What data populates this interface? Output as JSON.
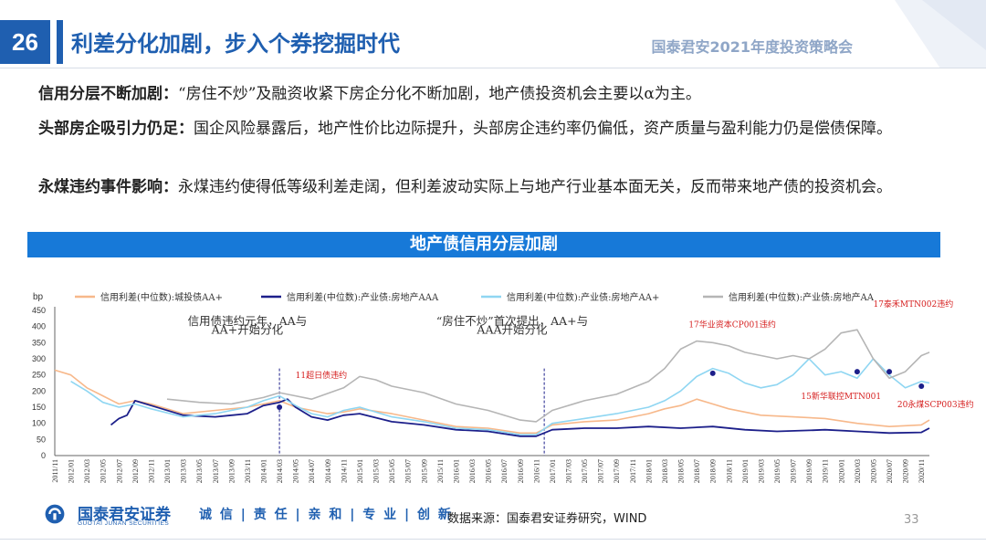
{
  "header": {
    "page_number": "26",
    "title": "利差分化加剧，步入个券挖掘时代",
    "conference": "国泰君安2021年度投资策略会"
  },
  "paragraphs": [
    {
      "label": "信用分层不断加剧：",
      "text": "“房住不炒”及融资收紧下房企分化不断加剧，地产债投资机会主要以α为主。"
    },
    {
      "label": "头部房企吸引力仍足：",
      "text": "国企风险暴露后，地产性价比边际提升，头部房企违约率仍偏低，资产质量与盈利能力仍是偿债保障。"
    },
    {
      "label": "永煤违约事件影响：",
      "text": "永煤违约使得低等级利差走阔，但利差波动实际上与地产行业基本面无关，反而带来地产债的投资机会。"
    }
  ],
  "banner": "地产债信用分层加剧",
  "footer": {
    "company": "国泰君安证券",
    "company_en": "GUOTAI JUNAN SECURITIES",
    "motto": "诚 信 | 责 任 | 亲 和 | 专 业 | 创 新",
    "source": "数据来源：国泰君安证券研究，WIND",
    "page": "33"
  },
  "colors": {
    "brand": "#1f5fb0",
    "banner": "#1779d8"
  },
  "chart_data": {
    "type": "line",
    "ylabel": "bp",
    "ylim": [
      0,
      450
    ],
    "yticks": [
      0,
      50,
      100,
      150,
      200,
      250,
      300,
      350,
      400,
      450
    ],
    "x_start": "2011/11",
    "x_end": "2020/12",
    "xtick_labels": [
      "2011/11",
      "2012/01",
      "2012/03",
      "2012/05",
      "2012/07",
      "2012/09",
      "2012/11",
      "2013/01",
      "2013/03",
      "2013/05",
      "2013/07",
      "2013/09",
      "2013/11",
      "2014/01",
      "2014/03",
      "2014/05",
      "2014/07",
      "2014/09",
      "2014/11",
      "2015/01",
      "2015/03",
      "2015/05",
      "2015/07",
      "2015/09",
      "2015/11",
      "2016/01",
      "2016/03",
      "2016/05",
      "2016/07",
      "2016/09",
      "2016/11",
      "2017/01",
      "2017/03",
      "2017/05",
      "2017/07",
      "2017/09",
      "2017/11",
      "2018/01",
      "2018/03",
      "2018/05",
      "2018/07",
      "2018/09",
      "2018/11",
      "2019/01",
      "2019/03",
      "2019/05",
      "2019/07",
      "2019/09",
      "2019/11",
      "2020/01",
      "2020/03",
      "2020/05",
      "2020/07",
      "2020/09",
      "2020/11"
    ],
    "legend": [
      "信用利差(中位数):城投债AA+",
      "信用利差(中位数):产业债:房地产AAA",
      "信用利差(中位数):产业债:房地产AA+",
      "信用利差(中位数):产业债:房地产AA"
    ],
    "series": [
      {
        "name": "信用利差(中位数):城投债AA+",
        "color": "#f7b88a",
        "width": 1.6,
        "points": [
          [
            "2011/11",
            265
          ],
          [
            "2012/01",
            250
          ],
          [
            "2012/03",
            210
          ],
          [
            "2012/05",
            185
          ],
          [
            "2012/07",
            160
          ],
          [
            "2012/09",
            170
          ],
          [
            "2012/11",
            160
          ],
          [
            "2013/03",
            130
          ],
          [
            "2013/07",
            140
          ],
          [
            "2013/11",
            150
          ],
          [
            "2014/01",
            160
          ],
          [
            "2014/03",
            170
          ],
          [
            "2014/05",
            150
          ],
          [
            "2014/07",
            140
          ],
          [
            "2014/09",
            130
          ],
          [
            "2014/11",
            135
          ],
          [
            "2015/01",
            145
          ],
          [
            "2015/05",
            130
          ],
          [
            "2015/09",
            110
          ],
          [
            "2016/01",
            90
          ],
          [
            "2016/05",
            85
          ],
          [
            "2016/09",
            70
          ],
          [
            "2016/11",
            70
          ],
          [
            "2017/01",
            95
          ],
          [
            "2017/05",
            105
          ],
          [
            "2017/09",
            110
          ],
          [
            "2018/01",
            130
          ],
          [
            "2018/03",
            145
          ],
          [
            "2018/05",
            155
          ],
          [
            "2018/07",
            175
          ],
          [
            "2018/09",
            160
          ],
          [
            "2018/11",
            145
          ],
          [
            "2019/03",
            125
          ],
          [
            "2019/07",
            120
          ],
          [
            "2019/11",
            115
          ],
          [
            "2020/03",
            100
          ],
          [
            "2020/07",
            90
          ],
          [
            "2020/11",
            95
          ],
          [
            "2020/12",
            110
          ]
        ]
      },
      {
        "name": "信用利差(中位数):产业债:房地产AAA",
        "color": "#1c1f8a",
        "width": 1.8,
        "points": [
          [
            "2012/06",
            95
          ],
          [
            "2012/07",
            115
          ],
          [
            "2012/08",
            125
          ],
          [
            "2012/09",
            170
          ],
          [
            "2012/11",
            155
          ],
          [
            "2013/03",
            125
          ],
          [
            "2013/07",
            120
          ],
          [
            "2013/11",
            130
          ],
          [
            "2014/01",
            155
          ],
          [
            "2014/03",
            165
          ],
          [
            "2014/04",
            175
          ],
          [
            "2014/05",
            150
          ],
          [
            "2014/07",
            120
          ],
          [
            "2014/09",
            110
          ],
          [
            "2014/11",
            125
          ],
          [
            "2015/01",
            130
          ],
          [
            "2015/05",
            105
          ],
          [
            "2015/09",
            95
          ],
          [
            "2016/01",
            80
          ],
          [
            "2016/05",
            75
          ],
          [
            "2016/09",
            60
          ],
          [
            "2016/11",
            60
          ],
          [
            "2017/01",
            80
          ],
          [
            "2017/05",
            85
          ],
          [
            "2017/09",
            85
          ],
          [
            "2018/01",
            90
          ],
          [
            "2018/05",
            85
          ],
          [
            "2018/09",
            90
          ],
          [
            "2019/01",
            80
          ],
          [
            "2019/05",
            75
          ],
          [
            "2019/09",
            78
          ],
          [
            "2019/11",
            80
          ],
          [
            "2020/03",
            75
          ],
          [
            "2020/07",
            70
          ],
          [
            "2020/11",
            72
          ],
          [
            "2020/12",
            85
          ]
        ]
      },
      {
        "name": "信用利差(中位数):产业债:房地产AA+",
        "color": "#8fd6f2",
        "width": 1.6,
        "points": [
          [
            "2012/01",
            230
          ],
          [
            "2012/03",
            200
          ],
          [
            "2012/05",
            165
          ],
          [
            "2012/07",
            150
          ],
          [
            "2012/09",
            160
          ],
          [
            "2012/11",
            145
          ],
          [
            "2013/03",
            120
          ],
          [
            "2013/07",
            130
          ],
          [
            "2013/11",
            150
          ],
          [
            "2014/01",
            170
          ],
          [
            "2014/03",
            185
          ],
          [
            "2014/05",
            155
          ],
          [
            "2014/07",
            130
          ],
          [
            "2014/09",
            120
          ],
          [
            "2014/11",
            140
          ],
          [
            "2015/01",
            150
          ],
          [
            "2015/05",
            120
          ],
          [
            "2015/09",
            105
          ],
          [
            "2016/01",
            85
          ],
          [
            "2016/05",
            80
          ],
          [
            "2016/09",
            65
          ],
          [
            "2016/11",
            65
          ],
          [
            "2017/01",
            100
          ],
          [
            "2017/05",
            115
          ],
          [
            "2017/09",
            130
          ],
          [
            "2018/01",
            150
          ],
          [
            "2018/03",
            170
          ],
          [
            "2018/05",
            200
          ],
          [
            "2018/07",
            245
          ],
          [
            "2018/09",
            270
          ],
          [
            "2018/11",
            255
          ],
          [
            "2019/01",
            225
          ],
          [
            "2019/03",
            210
          ],
          [
            "2019/05",
            220
          ],
          [
            "2019/07",
            250
          ],
          [
            "2019/09",
            300
          ],
          [
            "2019/11",
            250
          ],
          [
            "2020/01",
            260
          ],
          [
            "2020/03",
            240
          ],
          [
            "2020/05",
            300
          ],
          [
            "2020/07",
            250
          ],
          [
            "2020/09",
            210
          ],
          [
            "2020/11",
            230
          ],
          [
            "2020/12",
            225
          ]
        ]
      },
      {
        "name": "信用利差(中位数):产业债:房地产AA",
        "color": "#b5b5b5",
        "width": 1.6,
        "points": [
          [
            "2013/01",
            175
          ],
          [
            "2013/05",
            165
          ],
          [
            "2013/09",
            160
          ],
          [
            "2014/01",
            180
          ],
          [
            "2014/03",
            195
          ],
          [
            "2014/05",
            185
          ],
          [
            "2014/07",
            175
          ],
          [
            "2014/11",
            210
          ],
          [
            "2015/01",
            245
          ],
          [
            "2015/03",
            235
          ],
          [
            "2015/05",
            215
          ],
          [
            "2015/09",
            195
          ],
          [
            "2016/01",
            160
          ],
          [
            "2016/05",
            140
          ],
          [
            "2016/09",
            110
          ],
          [
            "2016/11",
            105
          ],
          [
            "2017/01",
            140
          ],
          [
            "2017/05",
            170
          ],
          [
            "2017/09",
            190
          ],
          [
            "2018/01",
            230
          ],
          [
            "2018/03",
            270
          ],
          [
            "2018/05",
            330
          ],
          [
            "2018/07",
            355
          ],
          [
            "2018/09",
            350
          ],
          [
            "2018/11",
            340
          ],
          [
            "2019/01",
            320
          ],
          [
            "2019/05",
            300
          ],
          [
            "2019/07",
            310
          ],
          [
            "2019/09",
            300
          ],
          [
            "2019/11",
            330
          ],
          [
            "2020/01",
            380
          ],
          [
            "2020/03",
            390
          ],
          [
            "2020/05",
            300
          ],
          [
            "2020/07",
            240
          ],
          [
            "2020/09",
            260
          ],
          [
            "2020/11",
            310
          ],
          [
            "2020/12",
            320
          ]
        ]
      }
    ],
    "vlines": [
      "2014/03",
      "2016/12"
    ],
    "annotations": [
      {
        "text": "信用债违约元年，AA与",
        "x": "2013/11",
        "y": 405,
        "color": "#333"
      },
      {
        "text": "AA+开始分化",
        "x": "2013/11",
        "y": 378,
        "color": "#333"
      },
      {
        "text": "“房住不炒”首次提出，AA+与",
        "x": "2016/08",
        "y": 405,
        "color": "#333"
      },
      {
        "text": "AAA开始分化",
        "x": "2016/08",
        "y": 378,
        "color": "#333"
      },
      {
        "text": "11超日债违约",
        "x": "2014/05",
        "y": 240,
        "color": "#d62020"
      },
      {
        "text": "17华业资本CP001违约",
        "x": "2018/06",
        "y": 398,
        "color": "#d62020"
      },
      {
        "text": "17泰禾MTN002违约",
        "x": "2020/05",
        "y": 462,
        "color": "#d62020"
      },
      {
        "text": "15新华联控MTN001",
        "x": "2019/08",
        "y": 175,
        "color": "#d62020"
      },
      {
        "text": "20永煤SCP003违约",
        "x": "2020/08",
        "y": 150,
        "color": "#d62020"
      }
    ],
    "event_points": [
      [
        "2014/03",
        150
      ],
      [
        "2018/09",
        255
      ],
      [
        "2020/03",
        260
      ],
      [
        "2020/07",
        260
      ],
      [
        "2020/11",
        215
      ]
    ]
  }
}
